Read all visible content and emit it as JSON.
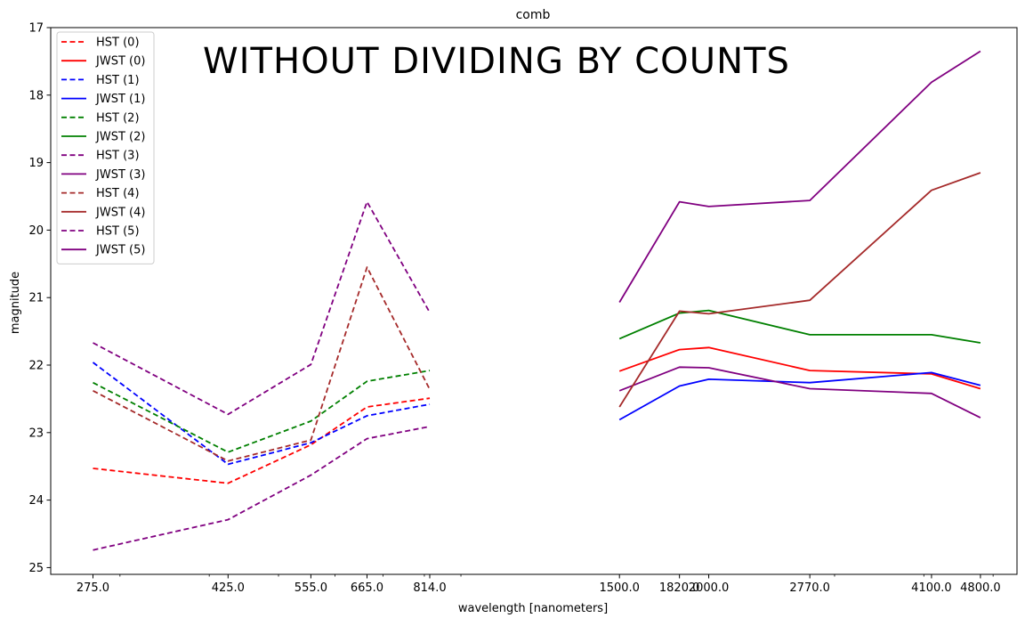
{
  "chart_data": {
    "type": "line",
    "title": "comb",
    "xlabel": "wavelength [nanometers]",
    "ylabel": "magnitude",
    "annotation": "WITHOUT DIVIDING BY COUNTS",
    "x_scale": "log",
    "y_inverted": true,
    "ylim": [
      25.1,
      17.0
    ],
    "xlim": [
      240.0,
      5400.0
    ],
    "x_ticks": [
      275.0,
      425.0,
      555.0,
      665.0,
      814.0,
      1500.0,
      1820.0,
      2000.0,
      2770.0,
      4100.0,
      4800.0
    ],
    "x_tick_labels": [
      "275.0",
      "425.0",
      "555.0",
      "665.0",
      "814.0",
      "1500.0",
      "1820.0",
      "2000.0",
      "2770.0",
      "4100.0",
      "4800.0"
    ],
    "y_ticks": [
      17,
      18,
      19,
      20,
      21,
      22,
      23,
      24,
      25
    ],
    "y_tick_labels": [
      "17",
      "18",
      "19",
      "20",
      "21",
      "22",
      "23",
      "24",
      "25"
    ],
    "grid": false,
    "legend_position": "top-left",
    "series": [
      {
        "name": "HST (0)",
        "color": "#ff0000",
        "dash": "dashed",
        "x": [
          275.0,
          425.0,
          555.0,
          665.0,
          814.0
        ],
        "y": [
          23.53,
          23.75,
          23.18,
          22.62,
          22.49
        ]
      },
      {
        "name": "JWST (0)",
        "color": "#ff0000",
        "dash": "solid",
        "x": [
          1500.0,
          1820.0,
          2000.0,
          2770.0,
          4100.0,
          4800.0
        ],
        "y": [
          22.09,
          21.77,
          21.74,
          22.08,
          22.13,
          22.35
        ]
      },
      {
        "name": "HST (1)",
        "color": "#0000ff",
        "dash": "dashed",
        "x": [
          275.0,
          425.0,
          555.0,
          665.0,
          814.0
        ],
        "y": [
          21.96,
          23.47,
          23.15,
          22.75,
          22.58
        ]
      },
      {
        "name": "JWST (1)",
        "color": "#0000ff",
        "dash": "solid",
        "x": [
          1500.0,
          1820.0,
          2000.0,
          2770.0,
          4100.0,
          4800.0
        ],
        "y": [
          22.81,
          22.31,
          22.21,
          22.26,
          22.11,
          22.3
        ]
      },
      {
        "name": "HST (2)",
        "color": "#008000",
        "dash": "dashed",
        "x": [
          275.0,
          425.0,
          555.0,
          665.0,
          814.0
        ],
        "y": [
          22.26,
          23.29,
          22.83,
          22.24,
          22.08
        ]
      },
      {
        "name": "JWST (2)",
        "color": "#008000",
        "dash": "solid",
        "x": [
          1500.0,
          1820.0,
          2000.0,
          2770.0,
          4100.0,
          4800.0
        ],
        "y": [
          21.61,
          21.23,
          21.19,
          21.55,
          21.55,
          21.67
        ]
      },
      {
        "name": "HST (3)",
        "color": "#800080",
        "dash": "dashed",
        "x": [
          275.0,
          425.0,
          555.0,
          665.0,
          814.0
        ],
        "y": [
          24.74,
          24.29,
          23.63,
          23.09,
          22.91
        ]
      },
      {
        "name": "JWST (3)",
        "color": "#800080",
        "dash": "solid",
        "x": [
          1500.0,
          1820.0,
          2000.0,
          2770.0,
          4100.0,
          4800.0
        ],
        "y": [
          22.38,
          22.03,
          22.04,
          22.35,
          22.42,
          22.78
        ]
      },
      {
        "name": "HST (4)",
        "color": "#a52a2a",
        "dash": "dashed",
        "x": [
          275.0,
          425.0,
          555.0,
          665.0,
          814.0
        ],
        "y": [
          22.38,
          23.42,
          23.11,
          20.55,
          22.36
        ]
      },
      {
        "name": "JWST (4)",
        "color": "#a52a2a",
        "dash": "solid",
        "x": [
          1500.0,
          1820.0,
          2000.0,
          2770.0,
          4100.0,
          4800.0
        ],
        "y": [
          22.62,
          21.2,
          21.24,
          21.04,
          19.41,
          19.15
        ]
      },
      {
        "name": "HST (5)",
        "color": "#800080",
        "dash": "dashed",
        "x": [
          275.0,
          425.0,
          555.0,
          665.0,
          814.0
        ],
        "y": [
          21.67,
          22.73,
          21.99,
          19.58,
          21.22
        ]
      },
      {
        "name": "JWST (5)",
        "color": "#800080",
        "dash": "solid",
        "x": [
          1500.0,
          1820.0,
          2000.0,
          2770.0,
          4100.0,
          4800.0
        ],
        "y": [
          21.07,
          19.58,
          19.65,
          19.56,
          17.81,
          17.35
        ]
      }
    ]
  }
}
